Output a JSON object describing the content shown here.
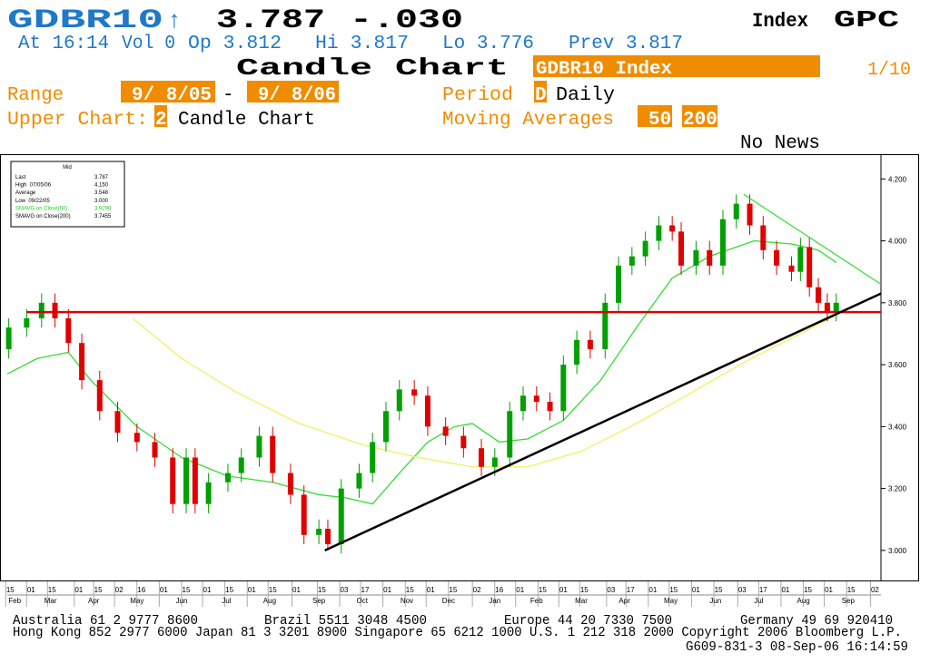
{
  "header": {
    "ticker": "GDBR10",
    "arrow": "↑",
    "last": "3.787",
    "change": "-.030",
    "sector": "Index",
    "function": "GPC",
    "quote": {
      "time": "At 16:14",
      "vol": "Vol 0",
      "open": "Op 3.812",
      "high": "Hi 3.817",
      "low": "Lo 3.776",
      "prev": "Prev 3.817"
    },
    "title": "Candle Chart",
    "security": "GDBR10 Index",
    "page": "1/10",
    "range_label": "Range",
    "range_start": "9/ 8/05",
    "range_sep": "-",
    "range_end": "9/ 8/06",
    "period_label": "Period",
    "period_code": "D",
    "period": "Daily",
    "upper_chart_label": "Upper Chart:",
    "upper_chart_code": "2",
    "upper_chart": "Candle Chart",
    "ma_label": "Moving Averages",
    "ma1": "50",
    "ma2": "200",
    "news": "No News"
  },
  "chart_data": {
    "type": "candlestick",
    "candles": {
      "up_color": "#00a000",
      "down_color": "#e00000",
      "x": [
        1,
        13,
        23,
        32,
        41,
        50,
        62,
        74,
        87,
        99,
        111,
        120,
        126,
        135,
        148,
        157,
        169,
        178,
        190,
        199,
        209,
        215,
        224,
        236,
        245,
        254,
        263,
        273,
        282,
        294,
        306,
        318,
        327,
        337,
        346,
        355,
        364,
        373,
        382,
        391,
        401,
        410,
        419,
        428,
        437,
        446,
        452,
        462,
        471,
        480,
        489,
        498,
        507,
        516,
        526,
        532,
        538,
        544,
        550,
        556
      ],
      "open": [
        3.65,
        3.72,
        3.75,
        3.8,
        3.75,
        3.67,
        3.55,
        3.45,
        3.38,
        3.35,
        3.3,
        3.15,
        3.3,
        3.15,
        3.22,
        3.25,
        3.3,
        3.37,
        3.25,
        3.18,
        3.05,
        3.07,
        3.02,
        3.2,
        3.25,
        3.35,
        3.45,
        3.52,
        3.5,
        3.4,
        3.37,
        3.33,
        3.27,
        3.3,
        3.45,
        3.5,
        3.48,
        3.45,
        3.6,
        3.68,
        3.65,
        3.8,
        3.92,
        3.95,
        4.0,
        4.05,
        4.03,
        3.92,
        3.97,
        3.92,
        4.07,
        4.12,
        4.05,
        3.97,
        3.92,
        3.9,
        3.98,
        3.85,
        3.8,
        3.77
      ],
      "high": [
        3.75,
        3.78,
        3.83,
        3.83,
        3.78,
        3.7,
        3.58,
        3.48,
        3.41,
        3.38,
        3.33,
        3.33,
        3.33,
        3.25,
        3.28,
        3.33,
        3.4,
        3.4,
        3.28,
        3.21,
        3.1,
        3.1,
        3.23,
        3.28,
        3.38,
        3.48,
        3.55,
        3.55,
        3.53,
        3.43,
        3.4,
        3.36,
        3.33,
        3.48,
        3.53,
        3.53,
        3.51,
        3.63,
        3.71,
        3.71,
        3.83,
        3.95,
        3.98,
        4.03,
        4.08,
        4.08,
        4.06,
        4.0,
        4.0,
        4.1,
        4.15,
        4.15,
        4.08,
        4.0,
        3.95,
        4.01,
        4.01,
        3.88,
        3.83,
        3.83
      ],
      "low": [
        3.62,
        3.69,
        3.72,
        3.72,
        3.64,
        3.52,
        3.42,
        3.35,
        3.32,
        3.27,
        3.12,
        3.12,
        3.12,
        3.12,
        3.19,
        3.22,
        3.27,
        3.22,
        3.15,
        3.02,
        3.02,
        3.0,
        2.99,
        3.17,
        3.22,
        3.32,
        3.42,
        3.47,
        3.37,
        3.34,
        3.3,
        3.24,
        3.24,
        3.27,
        3.42,
        3.45,
        3.42,
        3.42,
        3.57,
        3.62,
        3.62,
        3.77,
        3.89,
        3.92,
        3.97,
        4.0,
        3.89,
        3.89,
        3.89,
        3.89,
        4.04,
        4.02,
        3.94,
        3.89,
        3.87,
        3.87,
        3.82,
        3.77,
        3.74,
        3.74
      ],
      "close": [
        3.72,
        3.75,
        3.8,
        3.75,
        3.67,
        3.55,
        3.45,
        3.38,
        3.35,
        3.3,
        3.15,
        3.3,
        3.15,
        3.22,
        3.25,
        3.3,
        3.37,
        3.25,
        3.18,
        3.05,
        3.07,
        3.02,
        3.2,
        3.25,
        3.35,
        3.45,
        3.52,
        3.5,
        3.4,
        3.37,
        3.33,
        3.27,
        3.3,
        3.45,
        3.5,
        3.48,
        3.45,
        3.6,
        3.68,
        3.65,
        3.8,
        3.92,
        3.95,
        4.0,
        4.05,
        4.03,
        3.92,
        3.97,
        3.92,
        4.07,
        4.12,
        4.05,
        3.97,
        3.92,
        3.9,
        3.98,
        3.85,
        3.8,
        3.77,
        3.8
      ]
    },
    "lines": [
      {
        "color": "#33dd33",
        "x": [
          0,
          20,
          41,
          56,
          87,
          117,
          148,
          178,
          209,
          227,
          245,
          263,
          282,
          300,
          312,
          330,
          349,
          373,
          398,
          422,
          446,
          471,
          501,
          526,
          544,
          556
        ],
        "values": [
          3.57,
          3.62,
          3.64,
          3.55,
          3.4,
          3.3,
          3.24,
          3.22,
          3.18,
          3.17,
          3.15,
          3.25,
          3.35,
          3.4,
          3.41,
          3.35,
          3.36,
          3.42,
          3.55,
          3.72,
          3.88,
          3.95,
          4.0,
          3.99,
          3.97,
          3.93
        ]
      },
      {
        "color": "#f0f060",
        "x": [
          84,
          117,
          154,
          196,
          239,
          276,
          312,
          349,
          385,
          422,
          459,
          495,
          532,
          556
        ],
        "values": [
          3.75,
          3.62,
          3.51,
          3.41,
          3.34,
          3.3,
          3.27,
          3.27,
          3.32,
          3.41,
          3.51,
          3.61,
          3.7,
          3.76
        ]
      }
    ],
    "trend_lines": [
      {
        "color": "#e00000",
        "x": [
          13,
          586
        ],
        "values": [
          3.77,
          3.77
        ]
      },
      {
        "color": "#000000",
        "x": [
          213,
          586
        ],
        "values": [
          3.0,
          3.83
        ]
      },
      {
        "color": "#33dd33",
        "x": [
          494,
          586
        ],
        "values": [
          4.15,
          3.86
        ]
      }
    ],
    "xlim": [
      0,
      586
    ],
    "ylim": [
      2.9,
      4.28
    ],
    "yticks": [
      {
        "value": 3.0,
        "label": "3.000"
      },
      {
        "value": 3.2,
        "label": "3.200"
      },
      {
        "value": 3.4,
        "label": "3.400"
      },
      {
        "value": 3.6,
        "label": "3.600"
      },
      {
        "value": 3.8,
        "label": "3.800"
      },
      {
        "value": 4.0,
        "label": "4.000"
      },
      {
        "value": 4.2,
        "label": "4.200"
      }
    ],
    "xticks": [
      {
        "value": 2,
        "label": "15"
      },
      {
        "value": 16,
        "label": "01"
      },
      {
        "value": 30,
        "label": "15"
      },
      {
        "value": 48,
        "label": "01"
      },
      {
        "value": 61,
        "label": "15"
      },
      {
        "value": 75,
        "label": "02"
      },
      {
        "value": 90,
        "label": "16"
      },
      {
        "value": 105,
        "label": "01"
      },
      {
        "value": 120,
        "label": "15"
      },
      {
        "value": 134,
        "label": "01"
      },
      {
        "value": 149,
        "label": "15"
      },
      {
        "value": 164,
        "label": "01"
      },
      {
        "value": 178,
        "label": "15"
      },
      {
        "value": 194,
        "label": "01"
      },
      {
        "value": 211,
        "label": "15"
      },
      {
        "value": 226,
        "label": "03"
      },
      {
        "value": 240,
        "label": "17"
      },
      {
        "value": 255,
        "label": "01"
      },
      {
        "value": 270,
        "label": "15"
      },
      {
        "value": 284,
        "label": "01"
      },
      {
        "value": 299,
        "label": "15"
      },
      {
        "value": 315,
        "label": "02"
      },
      {
        "value": 330,
        "label": "16"
      },
      {
        "value": 344,
        "label": "01"
      },
      {
        "value": 359,
        "label": "15"
      },
      {
        "value": 373,
        "label": "01"
      },
      {
        "value": 387,
        "label": "15"
      },
      {
        "value": 405,
        "label": "03"
      },
      {
        "value": 418,
        "label": "17"
      },
      {
        "value": 433,
        "label": "01"
      },
      {
        "value": 447,
        "label": "15"
      },
      {
        "value": 462,
        "label": "01"
      },
      {
        "value": 477,
        "label": "15"
      },
      {
        "value": 493,
        "label": "03"
      },
      {
        "value": 507,
        "label": "17"
      },
      {
        "value": 522,
        "label": "01"
      },
      {
        "value": 537,
        "label": "15"
      },
      {
        "value": 551,
        "label": "01"
      },
      {
        "value": 566,
        "label": "15"
      },
      {
        "value": 582,
        "label": "02"
      }
    ],
    "month_ticks": [
      {
        "value": 5,
        "label": "Feb"
      },
      {
        "value": 29,
        "label": "Mar"
      },
      {
        "value": 58,
        "label": "Apr"
      },
      {
        "value": 87,
        "label": "May"
      },
      {
        "value": 117,
        "label": "Jun"
      },
      {
        "value": 147,
        "label": "Jul"
      },
      {
        "value": 176,
        "label": "Aug"
      },
      {
        "value": 209,
        "label": "Sep"
      },
      {
        "value": 238,
        "label": "Oct"
      },
      {
        "value": 268,
        "label": "Nov"
      },
      {
        "value": 296,
        "label": "Dec"
      },
      {
        "value": 327,
        "label": "Jan"
      },
      {
        "value": 355,
        "label": "Feb"
      },
      {
        "value": 385,
        "label": "Mar"
      },
      {
        "value": 414,
        "label": "Apr"
      },
      {
        "value": 445,
        "label": "May"
      },
      {
        "value": 475,
        "label": "Jun"
      },
      {
        "value": 504,
        "label": "Jul"
      },
      {
        "value": 534,
        "label": "Aug"
      },
      {
        "value": 564,
        "label": "Sep"
      }
    ],
    "legend": {
      "title": "Mid",
      "rows": [
        {
          "label": "Last",
          "value": "3.787",
          "color": "#000000"
        },
        {
          "label": "High  07/05/06",
          "value": "4.150",
          "color": "#000000"
        },
        {
          "label": "Average",
          "value": "3.548",
          "color": "#000000"
        },
        {
          "label": "Low  09/22/05",
          "value": "3.000",
          "color": "#000000"
        },
        {
          "label": "SMAVG on Close(50)",
          "value": "3.9298",
          "color": "#22cc22"
        },
        {
          "label": "SMAVG on Close(200)",
          "value": "3.7455",
          "color": "#000000"
        }
      ]
    }
  },
  "footer": {
    "row1": [
      "Australia 61 2 9777 8600",
      "Brazil 5511 3048 4500",
      "Europe 44 20 7330 7500",
      "Germany 49 69 920410"
    ],
    "row2": "Hong Kong 852 2977 6000 Japan 81 3 3201 8900 Singapore 65 6212 1000 U.S. 1 212 318 2000 Copyright 2006 Bloomberg L.P.",
    "row3": "G609-831-3 08-Sep-06 16:14:59"
  }
}
